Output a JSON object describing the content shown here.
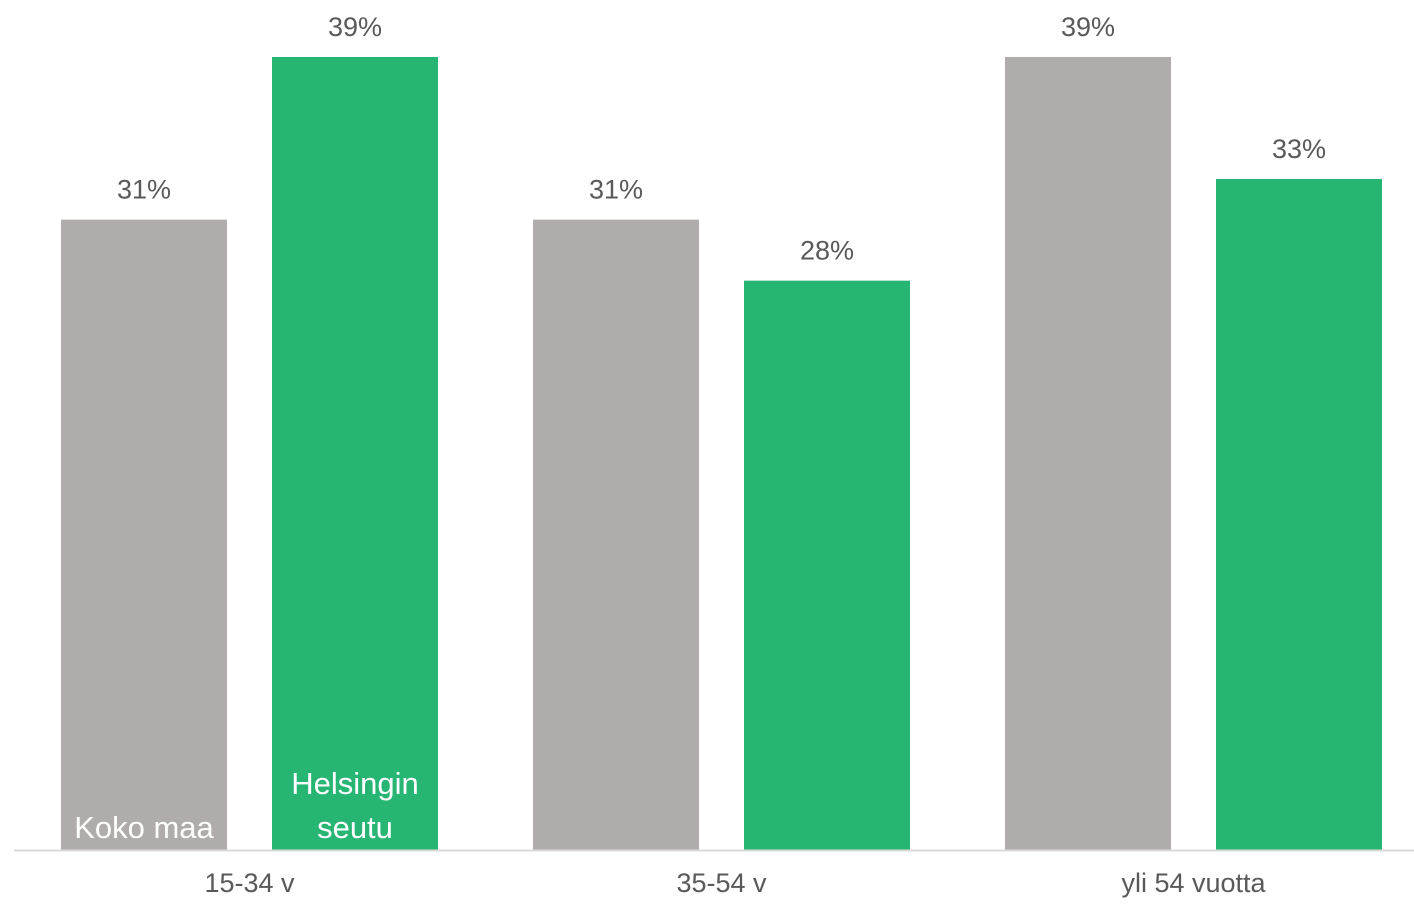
{
  "chart_data": {
    "type": "bar",
    "categories": [
      "15-34 v",
      "35-54 v",
      "yli 54 vuotta"
    ],
    "series": [
      {
        "name": "Koko maa",
        "label_lines": [
          "Koko maa"
        ],
        "color": "#AFACAB",
        "values": [
          31,
          31,
          39
        ],
        "data_labels": [
          "31%",
          "31%",
          "39%"
        ]
      },
      {
        "name": "Helsingin seutu",
        "label_lines": [
          "Helsingin",
          "seutu"
        ],
        "color": "#27B574",
        "values": [
          39,
          28,
          33
        ],
        "data_labels": [
          "39%",
          "28%",
          "33%"
        ]
      }
    ],
    "ylim": [
      0,
      39
    ],
    "value_unit": "%",
    "grid": false,
    "legend": "inside-first-group-bars",
    "axis_color": "#D9D9D9"
  }
}
